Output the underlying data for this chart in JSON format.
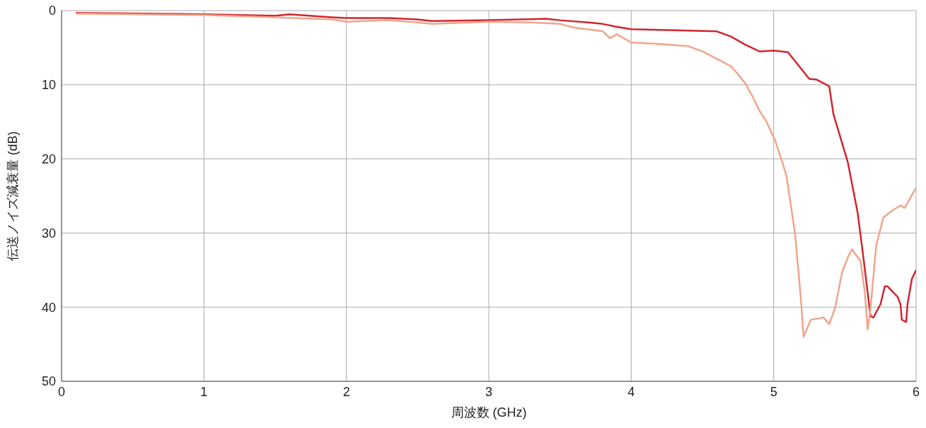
{
  "chart_data": {
    "type": "line",
    "xlabel": "周波数 (GHz)",
    "ylabel": "伝送ノイズ減衰量 (dB)",
    "xlim": [
      0,
      6
    ],
    "xticks": [
      0,
      1,
      2,
      3,
      4,
      5,
      6
    ],
    "ylim": [
      50,
      0
    ],
    "yticks": [
      0,
      10,
      20,
      30,
      40,
      50
    ],
    "grid": true,
    "legend": false,
    "marker": "none",
    "line_style": "solid",
    "series": [
      {
        "color": "#d0262e",
        "x": [
          0.1,
          1.0,
          1.5,
          1.6,
          1.9,
          2.0,
          2.3,
          2.5,
          2.6,
          3.0,
          3.4,
          3.5,
          3.7,
          3.8,
          3.9,
          4.0,
          4.2,
          4.4,
          4.6,
          4.7,
          4.8,
          4.9,
          5.0,
          5.1,
          5.25,
          5.3,
          5.39,
          5.42,
          5.52,
          5.59,
          5.63,
          5.68,
          5.7,
          5.75,
          5.78,
          5.8,
          5.87,
          5.89,
          5.9,
          5.93,
          5.94,
          5.97,
          6.0
        ],
        "values": [
          0.3,
          0.5,
          0.7,
          0.5,
          0.9,
          1.0,
          1.0,
          1.2,
          1.4,
          1.3,
          1.1,
          1.3,
          1.6,
          1.8,
          2.2,
          2.5,
          2.6,
          2.7,
          2.8,
          3.5,
          4.6,
          5.5,
          5.4,
          5.6,
          9.2,
          9.3,
          10.2,
          14.0,
          20.4,
          27.3,
          33.3,
          41.2,
          41.4,
          39.6,
          37.2,
          37.2,
          38.6,
          39.6,
          41.7,
          42.0,
          39.6,
          36.2,
          35.0
        ]
      },
      {
        "color": "#f0a58a",
        "x": [
          0.1,
          1.0,
          1.5,
          1.9,
          2.0,
          2.3,
          2.5,
          2.6,
          3.0,
          3.3,
          3.5,
          3.6,
          3.8,
          3.85,
          3.9,
          4.0,
          4.2,
          4.4,
          4.5,
          4.6,
          4.7,
          4.75,
          4.8,
          4.85,
          4.9,
          4.95,
          5.01,
          5.06,
          5.09,
          5.15,
          5.19,
          5.21,
          5.26,
          5.35,
          5.39,
          5.43,
          5.48,
          5.52,
          5.55,
          5.61,
          5.64,
          5.66,
          5.68,
          5.72,
          5.77,
          5.83,
          5.89,
          5.92,
          6.0
        ],
        "values": [
          0.4,
          0.6,
          0.9,
          1.2,
          1.5,
          1.3,
          1.6,
          1.8,
          1.5,
          1.6,
          1.8,
          2.3,
          2.8,
          3.7,
          3.2,
          4.3,
          4.5,
          4.8,
          5.5,
          6.5,
          7.5,
          8.6,
          9.8,
          11.5,
          13.5,
          15.0,
          17.5,
          20.4,
          22.3,
          30.1,
          38.6,
          44.0,
          41.7,
          41.4,
          42.3,
          40.2,
          35.3,
          33.3,
          32.2,
          33.8,
          38.0,
          43.0,
          40.2,
          31.7,
          27.9,
          27.0,
          26.3,
          26.6,
          23.9
        ]
      }
    ]
  }
}
